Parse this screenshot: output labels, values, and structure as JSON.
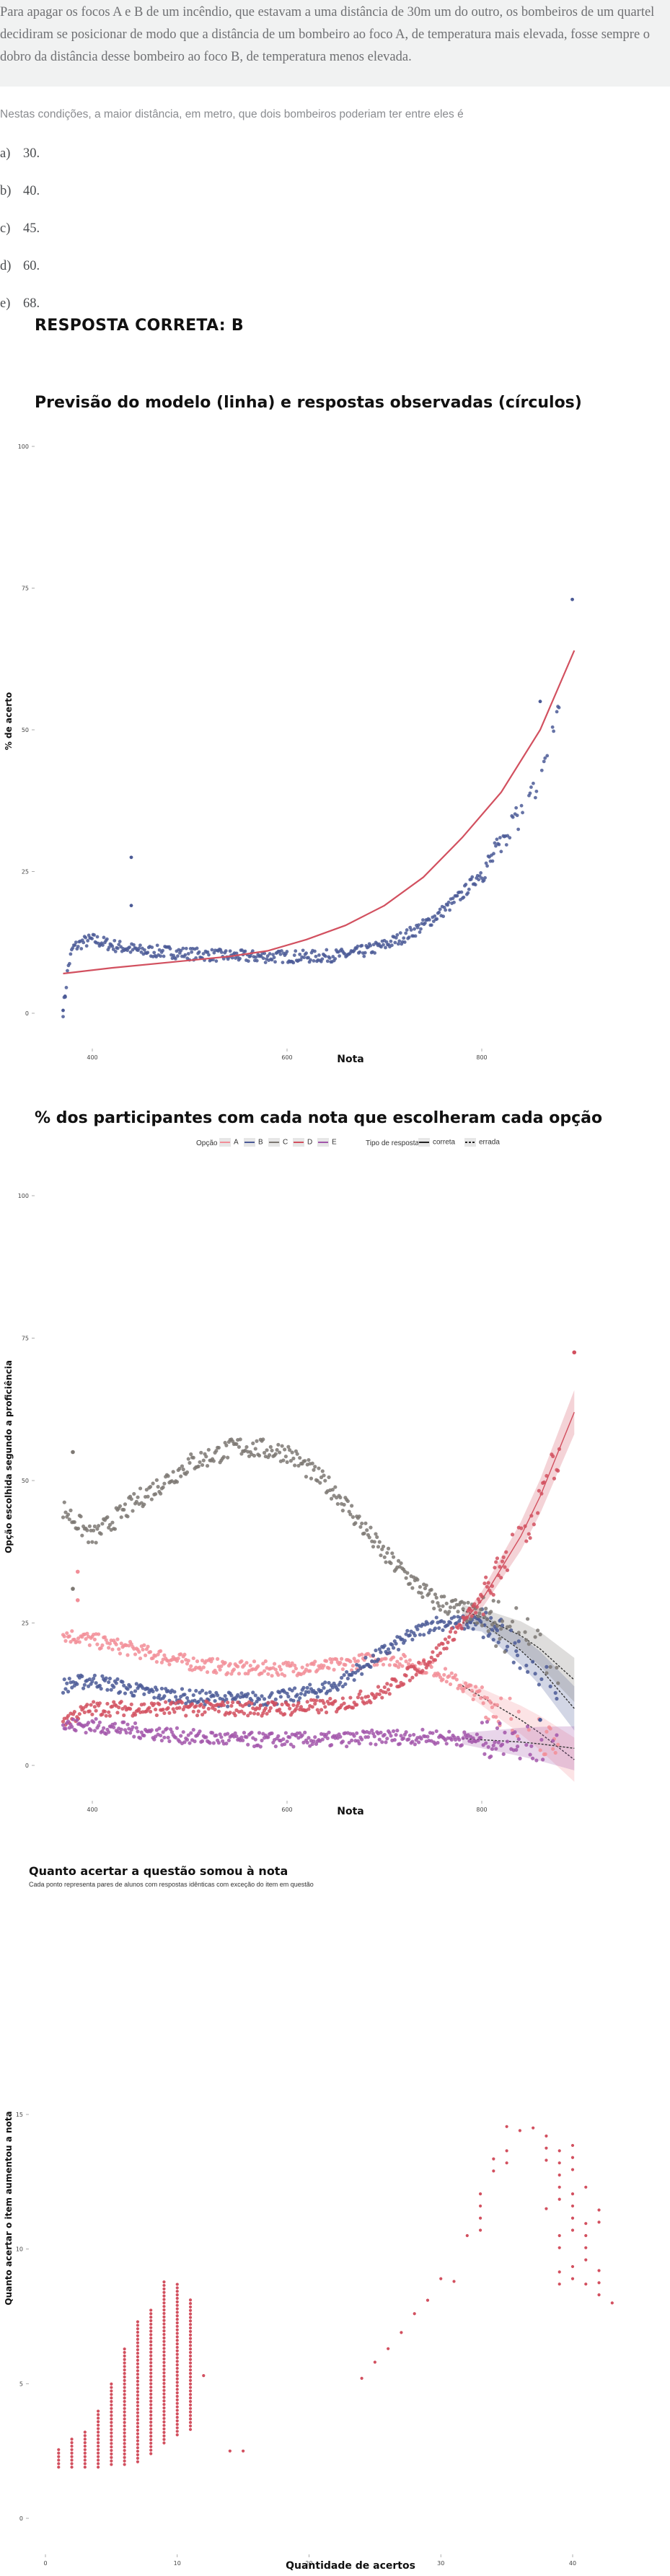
{
  "question": {
    "text": "Para apagar os focos A e B de um incêndio, que estavam a uma distância de 30m um do outro, os bombeiros de um quartel decidiram se posicionar de modo que a distância de um bombeiro ao foco A, de temperatura mais elevada, fosse sempre o dobro da distância desse bombeiro ao foco B, de temperatura menos elevada.",
    "ask": "Nestas condições, a maior distância, em metro, que dois bombeiros poderiam ter entre eles é",
    "options": [
      {
        "letter": "a)",
        "value": "30."
      },
      {
        "letter": "b)",
        "value": "40."
      },
      {
        "letter": "c)",
        "value": "45."
      },
      {
        "letter": "d)",
        "value": "60."
      },
      {
        "letter": "e)",
        "value": "68."
      }
    ],
    "answer": "RESPOSTA CORRETA: B"
  },
  "colors": {
    "A": "#f28e98",
    "B": "#4b5a96",
    "C": "#7d7873",
    "D": "#d2505f",
    "E": "#a256aa",
    "model_line": "#d2505f",
    "observed": "#4b5a96",
    "chart3_points": "#d2505f"
  },
  "chart1": {
    "title": "Previsão do modelo (linha) e respostas observadas (círculos)",
    "xlabel": "Nota",
    "ylabel": "% de acerto",
    "xticks": [
      "400",
      "600",
      "800"
    ],
    "yticks": [
      "0",
      "25",
      "50",
      "75",
      "100"
    ]
  },
  "chart2": {
    "title": "% dos participantes com cada nota que escolheram cada opção",
    "xlabel": "Nota",
    "ylabel": "Opção escolhida segundo a proficiência",
    "xticks": [
      "400",
      "600",
      "800"
    ],
    "yticks": [
      "0",
      "25",
      "50",
      "75",
      "100"
    ],
    "legend": {
      "option_title": "Opção",
      "options": [
        "A",
        "B",
        "C",
        "D",
        "E"
      ],
      "type_title": "Tipo de resposta",
      "types": [
        "correta",
        "errada"
      ]
    }
  },
  "chart3": {
    "title": "Quanto acertar a questão somou à nota",
    "subtitle": "Cada ponto representa pares de alunos com respostas idênticas com exceção do item em questão",
    "xlabel": "Quantidade de acertos",
    "ylabel": "Quanto acertar o item aumentou a nota",
    "xticks": [
      "0",
      "10",
      "20",
      "30",
      "40"
    ],
    "yticks": [
      "0",
      "5",
      "10",
      "15"
    ]
  },
  "chart_data": [
    {
      "type": "scatter",
      "title": "Previsão do modelo (linha) e respostas observadas (círculos)",
      "xlabel": "Nota",
      "ylabel": "% de acerto",
      "xlim": [
        335,
        900
      ],
      "ylim": [
        0,
        100
      ],
      "grid": false,
      "series": [
        {
          "kind": "line",
          "x": [
            370,
            420,
            480,
            540,
            580,
            620,
            660,
            700,
            740,
            780,
            820,
            860,
            895
          ],
          "values": [
            7,
            8,
            9,
            10,
            11,
            13,
            15.5,
            19,
            24,
            31,
            39,
            50,
            64
          ]
        },
        {
          "kind": "points",
          "x": [
            370,
            372,
            375,
            380,
            390,
            400,
            420,
            450,
            480,
            500,
            530,
            560,
            600,
            630,
            660,
            680,
            700,
            720,
            740,
            760,
            780,
            800,
            810,
            820,
            830,
            840,
            850,
            860,
            870,
            880,
            893
          ],
          "values": [
            0.5,
            3,
            8,
            11.5,
            12.5,
            13,
            12,
            11,
            10.8,
            10.5,
            10.2,
            10,
            10,
            10,
            10.3,
            11,
            12,
            13.5,
            15.5,
            18,
            21,
            25,
            27,
            30,
            33,
            35,
            38,
            42,
            48,
            56,
            73
          ]
        }
      ]
    },
    {
      "type": "scatter",
      "title": "% dos participantes com cada nota que escolheram cada opção",
      "xlabel": "Nota",
      "ylabel": "Opção escolhida segundo a proficiência",
      "xlim": [
        335,
        900
      ],
      "ylim": [
        0,
        100
      ],
      "grid": false,
      "legend": "top",
      "x": [
        370,
        400,
        450,
        500,
        550,
        600,
        650,
        700,
        750,
        800,
        850,
        895
      ],
      "series": [
        {
          "name": "A",
          "values": [
            23,
            22,
            20,
            18,
            17,
            17,
            17.5,
            19,
            17,
            12,
            7,
            1
          ]
        },
        {
          "name": "B",
          "values": [
            14,
            15,
            13,
            12,
            11.5,
            12,
            14,
            20,
            25,
            25,
            19,
            10
          ]
        },
        {
          "name": "C",
          "values": [
            45,
            40,
            47,
            53,
            56,
            55,
            48,
            37,
            29,
            26,
            22,
            15
          ]
        },
        {
          "name": "D",
          "values": [
            8,
            10,
            10,
            10,
            10,
            10,
            10.5,
            13,
            19,
            29,
            43,
            62
          ]
        },
        {
          "name": "E",
          "values": [
            7,
            7,
            6,
            5,
            4.5,
            4.5,
            4.5,
            5,
            5,
            4.5,
            4,
            3
          ]
        }
      ]
    },
    {
      "type": "scatter",
      "title": "Quanto acertar a questão somou à nota",
      "xlabel": "Quantidade de acertos",
      "ylabel": "Quanto acertar o item aumentou a nota",
      "xlim": [
        -1,
        45
      ],
      "ylim": [
        -0.3,
        15.5
      ],
      "grid": false,
      "points_x": [
        1,
        2,
        3,
        4,
        5,
        6,
        7,
        8,
        9,
        10,
        11,
        12,
        14,
        15,
        24,
        25,
        26,
        27,
        28,
        29,
        30,
        31,
        32,
        33,
        34,
        35,
        36,
        37,
        38,
        39,
        40,
        41,
        42,
        43
      ],
      "points_y_min": [
        1.9,
        1.9,
        1.9,
        1.9,
        2.0,
        2.0,
        2.1,
        2.4,
        2.8,
        3.1,
        3.3,
        5.3,
        2.5,
        2.5,
        5.2,
        5.8,
        6.3,
        6.9,
        7.6,
        8.1,
        8.9,
        8.8,
        10.5,
        10.7,
        12.9,
        13.2,
        14.4,
        14.5,
        11.5,
        8.7,
        8.9,
        8.7,
        8.3,
        8.0
      ],
      "points_y_max": [
        2.6,
        3.0,
        3.3,
        4.0,
        5.0,
        6.3,
        7.3,
        7.8,
        8.8,
        8.8,
        8.2,
        5.3,
        2.8,
        2.8,
        5.6,
        5.8,
        6.6,
        7.1,
        7.8,
        8.3,
        9.0,
        9.0,
        10.8,
        12.2,
        14.0,
        14.8,
        14.8,
        14.8,
        14.3,
        14.0,
        14.4,
        14.1,
        11.5,
        8.0
      ]
    }
  ]
}
